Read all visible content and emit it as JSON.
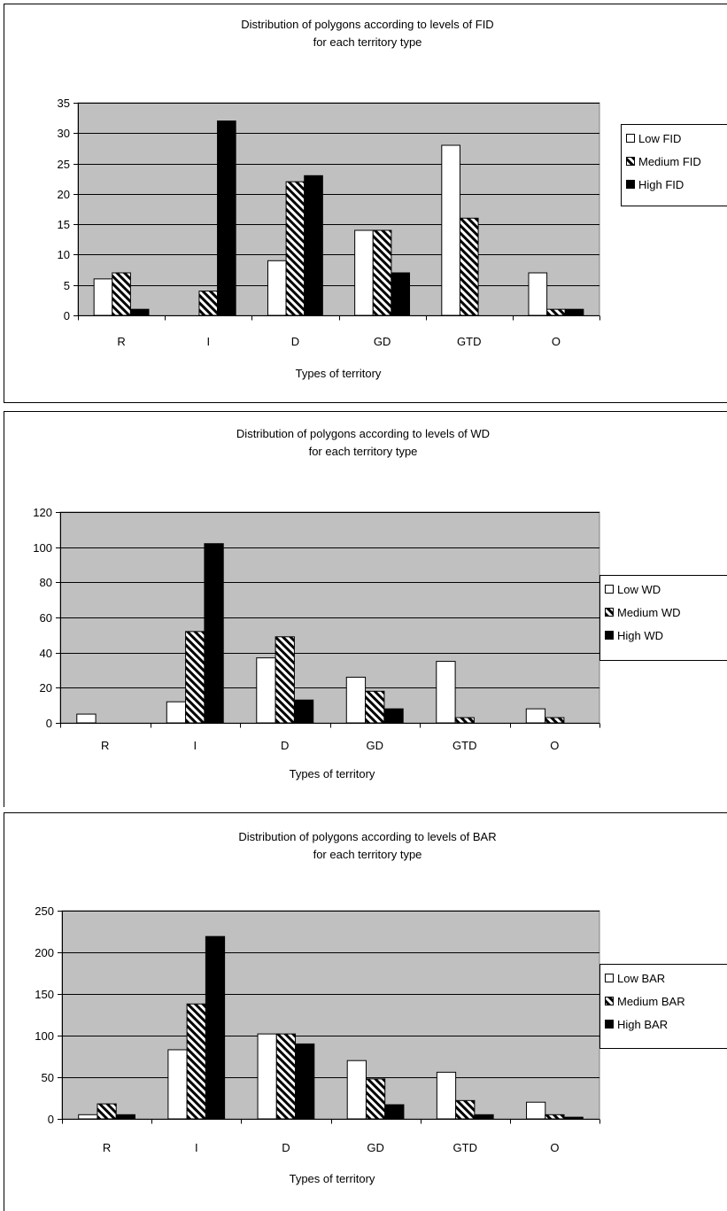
{
  "chart_data": [
    {
      "type": "bar",
      "title": "Distribution of polygons according to levels of FID",
      "subtitle": "for each territory type",
      "xlabel": "Types of territory",
      "ylabel": "",
      "categories": [
        "R",
        "I",
        "D",
        "GD",
        "GTD",
        "O"
      ],
      "ylim": [
        0,
        35
      ],
      "yticks": [
        0,
        5,
        10,
        15,
        20,
        25,
        30,
        35
      ],
      "grid": true,
      "legend_position": "right",
      "series": [
        {
          "name": "Low FID",
          "values": [
            6,
            0,
            9,
            14,
            28,
            7
          ],
          "pattern": "white"
        },
        {
          "name": "Medium FID",
          "values": [
            7,
            4,
            22,
            14,
            16,
            1
          ],
          "pattern": "hatch"
        },
        {
          "name": "High FID",
          "values": [
            1,
            32,
            23,
            7,
            0,
            1
          ],
          "pattern": "black"
        }
      ]
    },
    {
      "type": "bar",
      "title": "Distribution of polygons according to levels of WD",
      "subtitle": "for each territory type",
      "xlabel": "Types of territory",
      "ylabel": "",
      "categories": [
        "R",
        "I",
        "D",
        "GD",
        "GTD",
        "O"
      ],
      "ylim": [
        0,
        120
      ],
      "yticks": [
        0,
        20,
        40,
        60,
        80,
        100,
        120
      ],
      "grid": true,
      "legend_position": "right",
      "series": [
        {
          "name": "Low WD",
          "values": [
            5,
            12,
            37,
            26,
            35,
            8
          ],
          "pattern": "white"
        },
        {
          "name": "Medium WD",
          "values": [
            0,
            52,
            49,
            18,
            3,
            3
          ],
          "pattern": "hatch"
        },
        {
          "name": "High WD",
          "values": [
            0,
            102,
            13,
            8,
            0,
            0
          ],
          "pattern": "black"
        }
      ]
    },
    {
      "type": "bar",
      "title": "Distribution of polygons according to levels of BAR",
      "subtitle": "for each territory type",
      "xlabel": "Types of territory",
      "ylabel": "",
      "categories": [
        "R",
        "I",
        "D",
        "GD",
        "GTD",
        "O"
      ],
      "ylim": [
        0,
        250
      ],
      "yticks": [
        0,
        50,
        100,
        150,
        200,
        250
      ],
      "grid": true,
      "legend_position": "right",
      "series": [
        {
          "name": "Low BAR",
          "values": [
            5,
            83,
            102,
            70,
            56,
            20
          ],
          "pattern": "white"
        },
        {
          "name": "Medium BAR",
          "values": [
            18,
            138,
            102,
            48,
            22,
            5
          ],
          "pattern": "hatch"
        },
        {
          "name": "High BAR",
          "values": [
            5,
            219,
            90,
            17,
            5,
            2
          ],
          "pattern": "black"
        }
      ]
    }
  ],
  "colors": {
    "plot_background": "#c0c0c0",
    "bar_low": "#ffffff",
    "bar_high": "#000000",
    "gridline": "#000000"
  }
}
